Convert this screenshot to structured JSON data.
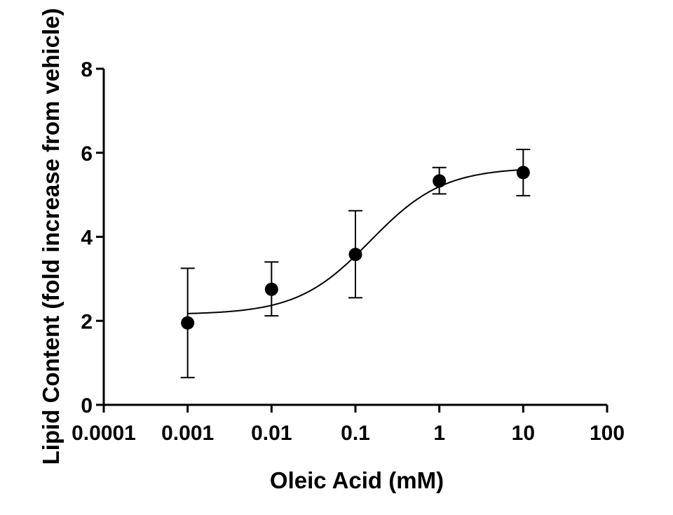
{
  "chart_data": {
    "type": "scatter",
    "title": "",
    "xlabel": "Oleic Acid (mM)",
    "ylabel": "Lipid Content (fold increase from vehicle)",
    "xscale": "log",
    "xlim": [
      0.0001,
      100
    ],
    "ylim": [
      0,
      8
    ],
    "xticks": [
      0.0001,
      0.001,
      0.01,
      0.1,
      1,
      10,
      100
    ],
    "xtick_labels": [
      "0.0001",
      "0.001",
      "0.01",
      "0.1",
      "1",
      "10",
      "100"
    ],
    "yticks": [
      0,
      2,
      4,
      6,
      8
    ],
    "ytick_labels": [
      "0",
      "2",
      "4",
      "6",
      "8"
    ],
    "grid": false,
    "legend": "none",
    "series": [
      {
        "x": [
          0.001,
          0.01,
          0.1,
          1,
          10
        ],
        "y": [
          1.95,
          2.75,
          3.58,
          5.33,
          5.53
        ],
        "error_lower": [
          0.65,
          2.12,
          2.55,
          5.02,
          4.98
        ],
        "error_upper": [
          3.25,
          3.4,
          4.62,
          5.65,
          6.08
        ]
      }
    ],
    "fit_curve": {
      "model": "sigmoidal dose-response",
      "bottom": 2.15,
      "top": 5.65,
      "ec50": 0.15,
      "hill_slope": 1.0,
      "x_range": [
        0.001,
        10
      ]
    },
    "colors": {
      "marker": "#000000",
      "line": "#000000",
      "axis": "#000000"
    }
  }
}
